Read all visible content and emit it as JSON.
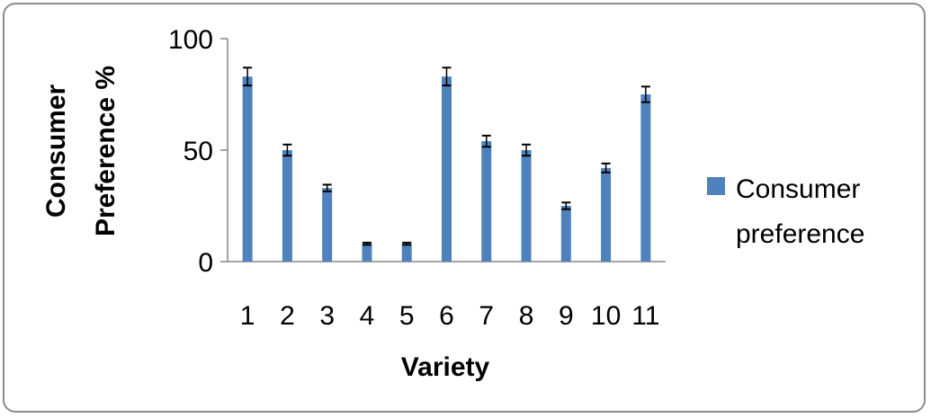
{
  "chart_data": {
    "type": "bar",
    "categories": [
      "1",
      "2",
      "3",
      "4",
      "5",
      "6",
      "7",
      "8",
      "9",
      "10",
      "11"
    ],
    "series": [
      {
        "name": "Consumer preference",
        "values": [
          83,
          50,
          33,
          8,
          8,
          83,
          54,
          50,
          25,
          42,
          75
        ],
        "errors": [
          4,
          2.5,
          1.5,
          0.5,
          0.5,
          4,
          2.5,
          2.5,
          1.5,
          2,
          3.5
        ],
        "color": "#4f81bd"
      }
    ],
    "xlabel": "Variety",
    "ylabel_line1": "Consumer",
    "ylabel_line2": "Preference %",
    "ylim": [
      0,
      100
    ],
    "yticks": [
      "0",
      "50",
      "100"
    ],
    "legend": {
      "placement": "right",
      "label_line1": "Consumer",
      "label_line2": "preference"
    }
  }
}
